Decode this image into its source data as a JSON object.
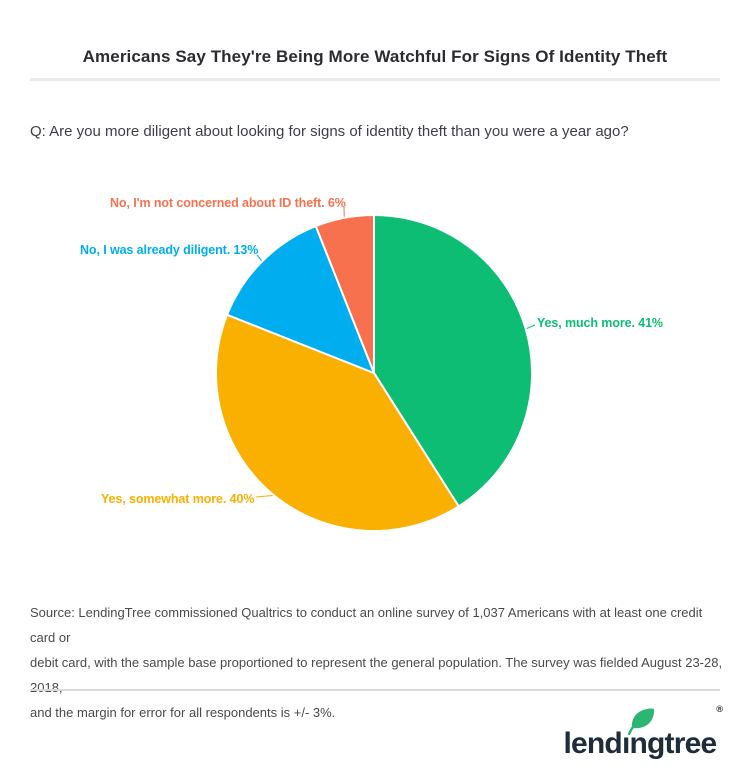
{
  "header": {
    "title": "Americans Say They're Being More Watchful For Signs Of Identity Theft"
  },
  "question": "Q: Are you more diligent about looking for signs of identity theft than you were a year ago?",
  "chart_data": {
    "type": "pie",
    "title": "Americans Say They're Being More Watchful For Signs Of Identity Theft",
    "question": "Q: Are you more diligent about looking for signs of identity theft than you were a year ago?",
    "categories": [
      "Yes, much more.",
      "Yes, somewhat more.",
      "No, I was already diligent.",
      "No, I'm not concerned about ID theft."
    ],
    "values": [
      41,
      40,
      13,
      6
    ],
    "labels": [
      "Yes, much more. 41%",
      "Yes, somewhat more. 40%",
      "No, I was already diligent. 13%",
      "No, I'm not concerned about ID theft. 6%"
    ],
    "colors": [
      "#0dbd74",
      "#f9b000",
      "#00adef",
      "#f7714f"
    ],
    "start_angle_deg": 0,
    "direction": "clockwise",
    "legend": "none",
    "data_labels": "outside-with-leader-lines"
  },
  "source": {
    "lines": [
      "Source: LendingTree commissioned Qualtrics to conduct an online survey of 1,037 Americans with at least one credit card or",
      "debit card, with the sample base proportioned to represent the general population. The survey was fielded August 23-28, 2018,",
      "and the margin for error for all respondents is +/- 3%."
    ]
  },
  "logo": {
    "brand": "lendingtree",
    "registered_mark": "®",
    "leaf_color": "#2bb673",
    "text_color": "#202c3a"
  }
}
